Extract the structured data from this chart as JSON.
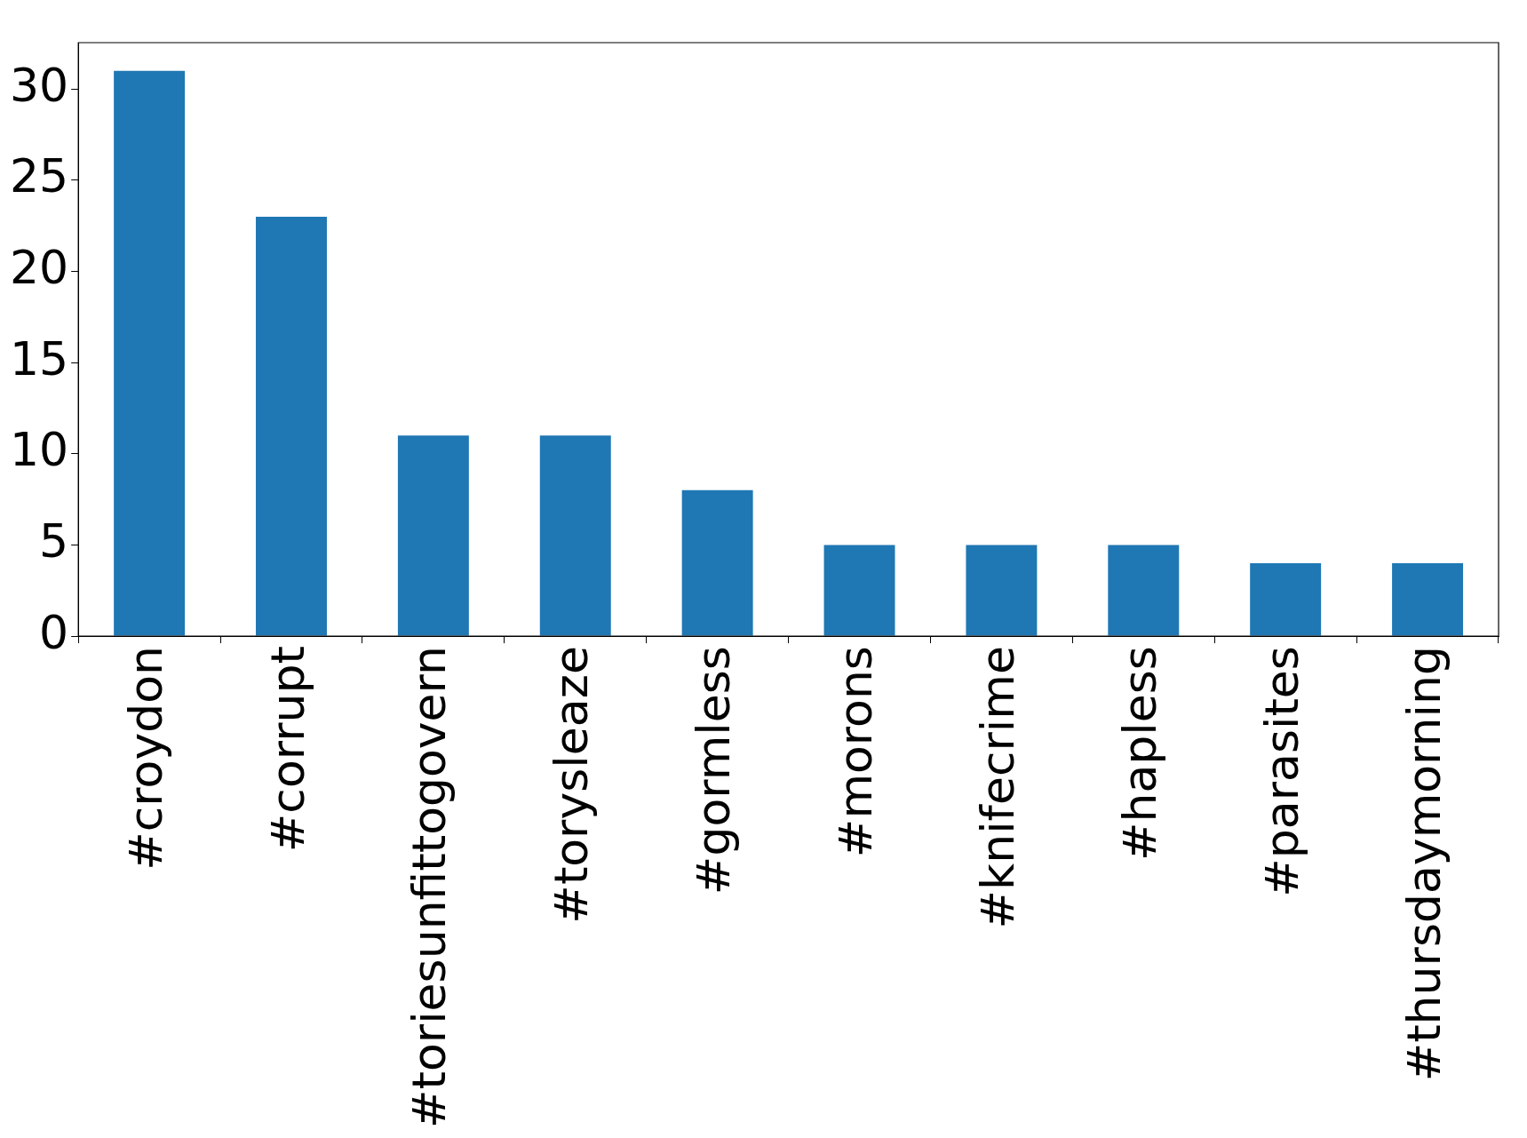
{
  "chart_data": {
    "type": "bar",
    "categories": [
      "#croydon",
      "#corrupt",
      "#toriesunfittogovern",
      "#torysleaze",
      "#gormless",
      "#morons",
      "#knifecrime",
      "#hapless",
      "#parasites",
      "#thursdaymorning"
    ],
    "values": [
      31,
      23,
      11,
      11,
      8,
      5,
      5,
      5,
      4,
      4
    ],
    "color": "#1f77b4",
    "ylim": [
      0,
      32.55
    ],
    "yticks": [
      0,
      5,
      10,
      15,
      20,
      25,
      30
    ],
    "grid": false,
    "legend": false
  }
}
